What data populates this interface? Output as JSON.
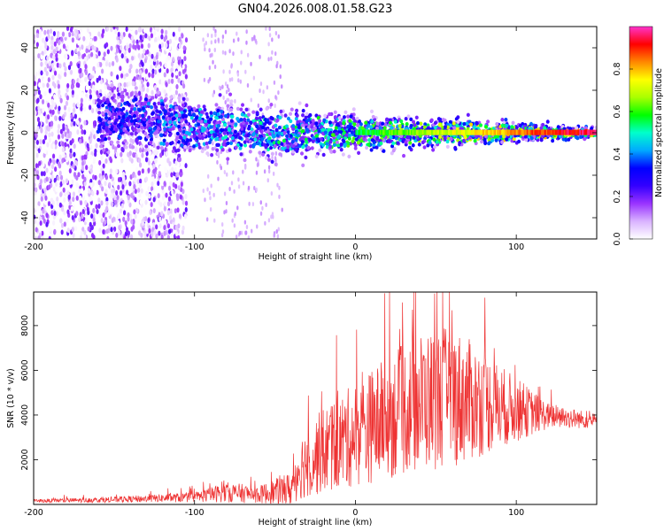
{
  "title": "GN04.2026.008.01.58.G23",
  "chart_data": [
    {
      "type": "heatmap",
      "name": "spectrogram",
      "xlabel": "Height of straight line (km)",
      "ylabel": "Frequency (Hz)",
      "xlim": [
        -200,
        150
      ],
      "ylim": [
        -50,
        50
      ],
      "x_ticks": [
        -200,
        -100,
        0,
        100
      ],
      "x_tick_labels": [
        "-200",
        "-100",
        "0",
        "100"
      ],
      "y_ticks": [
        -40,
        -20,
        0,
        20,
        40
      ],
      "y_tick_labels": [
        "-40",
        "-20",
        "0",
        "20",
        "40"
      ],
      "colorbar": {
        "label": "Normalized spectral amplitude",
        "range": [
          0,
          1
        ],
        "ticks": [
          0.0,
          0.2,
          0.4,
          0.6,
          0.8
        ],
        "tick_labels": [
          "0.0",
          "0.2",
          "0.4",
          "0.6",
          "0.8"
        ],
        "colors": [
          "#ffffff",
          "#d9b3ff",
          "#9933ff",
          "#3300ff",
          "#0000ff",
          "#00aaff",
          "#00ffcc",
          "#00ff00",
          "#aaff00",
          "#ffff00",
          "#ff8800",
          "#ff0000",
          "#ff33cc"
        ]
      },
      "trend": {
        "center_freq_hz": [
          {
            "x": -160,
            "y": 8
          },
          {
            "x": -100,
            "y": 3
          },
          {
            "x": -50,
            "y": 0
          },
          {
            "x": 0,
            "y": 0
          },
          {
            "x": 150,
            "y": 0
          }
        ],
        "scatter_region_x": [
          -200,
          -105
        ],
        "peak_band_x": [
          0,
          150
        ]
      }
    },
    {
      "type": "line",
      "name": "snr",
      "xlabel": "Height of straight line (km)",
      "ylabel": "SNR (10 * v/v)",
      "xlim": [
        -200,
        150
      ],
      "ylim": [
        0,
        9500
      ],
      "x_ticks": [
        -200,
        -100,
        0,
        100
      ],
      "x_tick_labels": [
        "-200",
        "-100",
        "0",
        "100"
      ],
      "y_ticks": [
        2000,
        4000,
        6000,
        8000
      ],
      "y_tick_labels": [
        "2000",
        "4000",
        "6000",
        "8000"
      ],
      "color": "#ee3333",
      "envelope": [
        {
          "x": -200,
          "mean": 150,
          "amp": 120
        },
        {
          "x": -150,
          "mean": 200,
          "amp": 200
        },
        {
          "x": -100,
          "mean": 300,
          "amp": 350
        },
        {
          "x": -80,
          "mean": 500,
          "amp": 700
        },
        {
          "x": -60,
          "mean": 400,
          "amp": 600
        },
        {
          "x": -40,
          "mean": 600,
          "amp": 1200
        },
        {
          "x": -35,
          "mean": 1500,
          "amp": 2200
        },
        {
          "x": -20,
          "mean": 2200,
          "amp": 3000
        },
        {
          "x": 0,
          "mean": 2900,
          "amp": 3600
        },
        {
          "x": 20,
          "mean": 3600,
          "amp": 4300
        },
        {
          "x": 40,
          "mean": 4300,
          "amp": 4800
        },
        {
          "x": 60,
          "mean": 4500,
          "amp": 4900
        },
        {
          "x": 80,
          "mean": 4300,
          "amp": 3600
        },
        {
          "x": 100,
          "mean": 4100,
          "amp": 2200
        },
        {
          "x": 120,
          "mean": 3900,
          "amp": 900
        },
        {
          "x": 150,
          "mean": 3700,
          "amp": 500
        }
      ]
    }
  ]
}
